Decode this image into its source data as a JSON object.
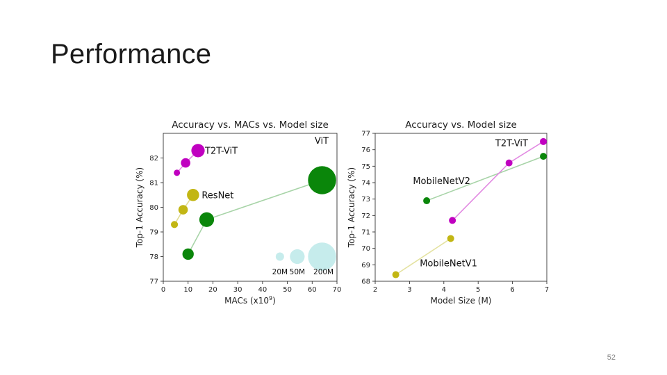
{
  "slide": {
    "title": "Performance",
    "page_number": "52"
  },
  "chart_data": [
    {
      "type": "scatter",
      "title": "Accuracy vs. MACs vs. Model size",
      "xlabel": "MACs (x10",
      "xlabel_sup": "9",
      "xlabel_end": ")",
      "ylabel": "Top-1 Accuracy (%)",
      "xlim": [
        0,
        70
      ],
      "ylim": [
        77,
        83
      ],
      "xticks": [
        "0",
        "10",
        "20",
        "30",
        "40",
        "50",
        "60",
        "70"
      ],
      "yticks": [
        "77",
        "78",
        "79",
        "80",
        "81",
        "82"
      ],
      "series": [
        {
          "name": "T2T-ViT",
          "color": "#c000c0",
          "line_color": "#e28ae2",
          "points": [
            {
              "x": 5.5,
              "y": 81.4,
              "size": 2.0
            },
            {
              "x": 9,
              "y": 81.8,
              "size": 4.5
            },
            {
              "x": 14,
              "y": 82.3,
              "size": 9
            }
          ]
        },
        {
          "name": "ResNet",
          "color": "#c2b614",
          "line_color": "#e0dc94",
          "points": [
            {
              "x": 4.5,
              "y": 79.3,
              "size": 2.5
            },
            {
              "x": 8,
              "y": 79.9,
              "size": 4.5
            },
            {
              "x": 12,
              "y": 80.5,
              "size": 7.5
            }
          ]
        },
        {
          "name": "ViT",
          "color": "#0a860a",
          "line_color": "#a8d4a8",
          "points": [
            {
              "x": 10,
              "y": 78.1,
              "size": 6.5
            },
            {
              "x": 17.5,
              "y": 79.5,
              "size": 11
            },
            {
              "x": 64,
              "y": 81.1,
              "size": 40
            }
          ]
        },
        {
          "name": "size-legend",
          "color": "#c6ecec",
          "line_color": "none",
          "points": [
            {
              "x": 47,
              "y": 78.0,
              "size": 3.5
            },
            {
              "x": 54,
              "y": 78.0,
              "size": 11
            },
            {
              "x": 64,
              "y": 78.0,
              "size": 40
            }
          ]
        }
      ],
      "annotations": [
        {
          "text": "T2T-ViT",
          "x": 16.8,
          "y": 82.3
        },
        {
          "text": "ResNet",
          "x": 15.5,
          "y": 80.5
        },
        {
          "text": "ViT",
          "x": 61,
          "y": 82.7
        }
      ],
      "size_legend_labels": [
        "20M",
        "50M",
        "200M"
      ]
    },
    {
      "type": "line",
      "title": "Accuracy vs. Model size",
      "xlabel": "Model Size (M)",
      "ylabel": "Top-1 Accuracy (%)",
      "xlim": [
        2,
        7
      ],
      "ylim": [
        68,
        77
      ],
      "xticks": [
        "2",
        "3",
        "4",
        "5",
        "6",
        "7"
      ],
      "yticks": [
        "68",
        "69",
        "70",
        "71",
        "72",
        "73",
        "74",
        "75",
        "76",
        "77"
      ],
      "series": [
        {
          "name": "MobileNetV1",
          "color": "#c2b614",
          "line_color": "#e4e2a0",
          "points": [
            {
              "x": 2.6,
              "y": 68.4
            },
            {
              "x": 4.2,
              "y": 70.6
            }
          ]
        },
        {
          "name": "MobileNetV2",
          "color": "#0a860a",
          "line_color": "#a8d4a8",
          "points": [
            {
              "x": 3.5,
              "y": 72.9
            },
            {
              "x": 6.9,
              "y": 75.6
            }
          ]
        },
        {
          "name": "T2T-ViT",
          "color": "#c000c0",
          "line_color": "#e28ae2",
          "points": [
            {
              "x": 4.25,
              "y": 71.7
            },
            {
              "x": 5.9,
              "y": 75.2
            },
            {
              "x": 6.9,
              "y": 76.5
            }
          ]
        }
      ],
      "annotations": [
        {
          "text": "T2T-ViT",
          "x": 5.5,
          "y": 76.4
        },
        {
          "text": "MobileNetV2",
          "x": 3.1,
          "y": 74.1
        },
        {
          "text": "MobileNetV1",
          "x": 3.3,
          "y": 69.1
        }
      ]
    }
  ]
}
